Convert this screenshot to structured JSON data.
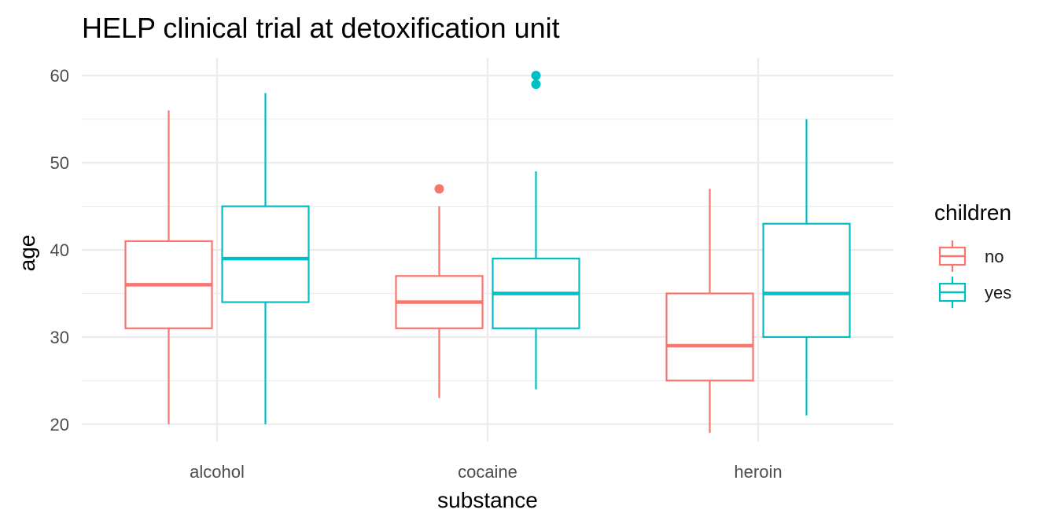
{
  "chart_data": {
    "type": "boxplot",
    "title": "HELP clinical trial at detoxification unit",
    "xlabel": "substance",
    "ylabel": "age",
    "ylim": [
      18,
      62
    ],
    "y_ticks": [
      20,
      30,
      40,
      50,
      60
    ],
    "categories": [
      "alcohol",
      "cocaine",
      "heroin"
    ],
    "grid": true,
    "legend": {
      "title": "children",
      "position": "right",
      "entries": [
        {
          "label": "no",
          "color": "#F8766D"
        },
        {
          "label": "yes",
          "color": "#00BFC4"
        }
      ]
    },
    "series": [
      {
        "name": "no",
        "color": "#F8766D",
        "boxes": [
          {
            "category": "alcohol",
            "lower_whisker": 20,
            "q1": 31,
            "median": 36,
            "q3": 41,
            "upper_whisker": 56,
            "outliers": []
          },
          {
            "category": "cocaine",
            "lower_whisker": 23,
            "q1": 31,
            "median": 34,
            "q3": 37,
            "upper_whisker": 45,
            "outliers": [
              47
            ]
          },
          {
            "category": "heroin",
            "lower_whisker": 19,
            "q1": 25,
            "median": 29,
            "q3": 35,
            "upper_whisker": 47,
            "outliers": []
          }
        ]
      },
      {
        "name": "yes",
        "color": "#00BFC4",
        "boxes": [
          {
            "category": "alcohol",
            "lower_whisker": 20,
            "q1": 34,
            "median": 39,
            "q3": 45,
            "upper_whisker": 58,
            "outliers": []
          },
          {
            "category": "cocaine",
            "lower_whisker": 24,
            "q1": 31,
            "median": 35,
            "q3": 39,
            "upper_whisker": 49,
            "outliers": [
              59,
              60
            ]
          },
          {
            "category": "heroin",
            "lower_whisker": 21,
            "q1": 30,
            "median": 35,
            "q3": 43,
            "upper_whisker": 55,
            "outliers": []
          }
        ]
      }
    ]
  }
}
